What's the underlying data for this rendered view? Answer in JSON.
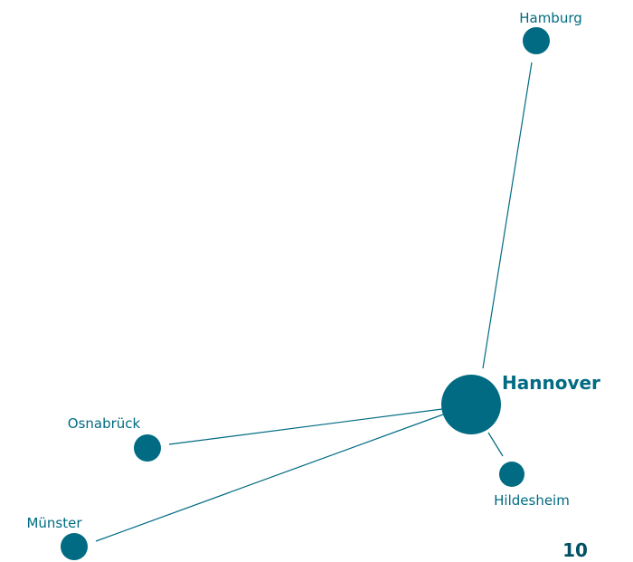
{
  "nodes": [
    {
      "label": "Hamburg"
    },
    {
      "label": "Hannover"
    },
    {
      "label": "Osnabrück"
    },
    {
      "label": "Münster"
    },
    {
      "label": "Hildesheim"
    }
  ],
  "page_number": "10"
}
